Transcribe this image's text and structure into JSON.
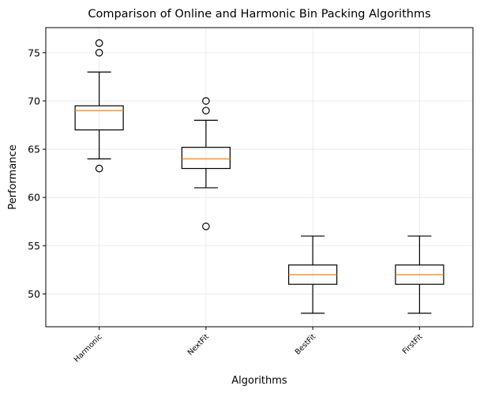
{
  "chart_data": {
    "type": "box",
    "title": "Comparison of Online and Harmonic Bin Packing Algorithms",
    "xlabel": "Algorithms",
    "ylabel": "Performance",
    "ylim": [
      46.6,
      77.6
    ],
    "yticks": [
      50,
      55,
      60,
      65,
      70,
      75
    ],
    "grid": true,
    "categories": [
      "Harmonic",
      "NextFit",
      "BestFit",
      "FirstFit"
    ],
    "boxes": [
      {
        "name": "Harmonic",
        "whisker_low": 64,
        "q1": 67,
        "median": 69,
        "q3": 69.5,
        "whisker_high": 73,
        "outliers": [
          63,
          75,
          76
        ]
      },
      {
        "name": "NextFit",
        "whisker_low": 61,
        "q1": 63,
        "median": 64,
        "q3": 65.2,
        "whisker_high": 68,
        "outliers": [
          57,
          69,
          70
        ]
      },
      {
        "name": "BestFit",
        "whisker_low": 48,
        "q1": 51,
        "median": 52,
        "q3": 53,
        "whisker_high": 56,
        "outliers": []
      },
      {
        "name": "FirstFit",
        "whisker_low": 48,
        "q1": 51,
        "median": 52,
        "q3": 53,
        "whisker_high": 56,
        "outliers": []
      }
    ],
    "colors": {
      "median": "#ff7f0e",
      "box": "#000000",
      "grid": "#e6e6e6"
    }
  }
}
